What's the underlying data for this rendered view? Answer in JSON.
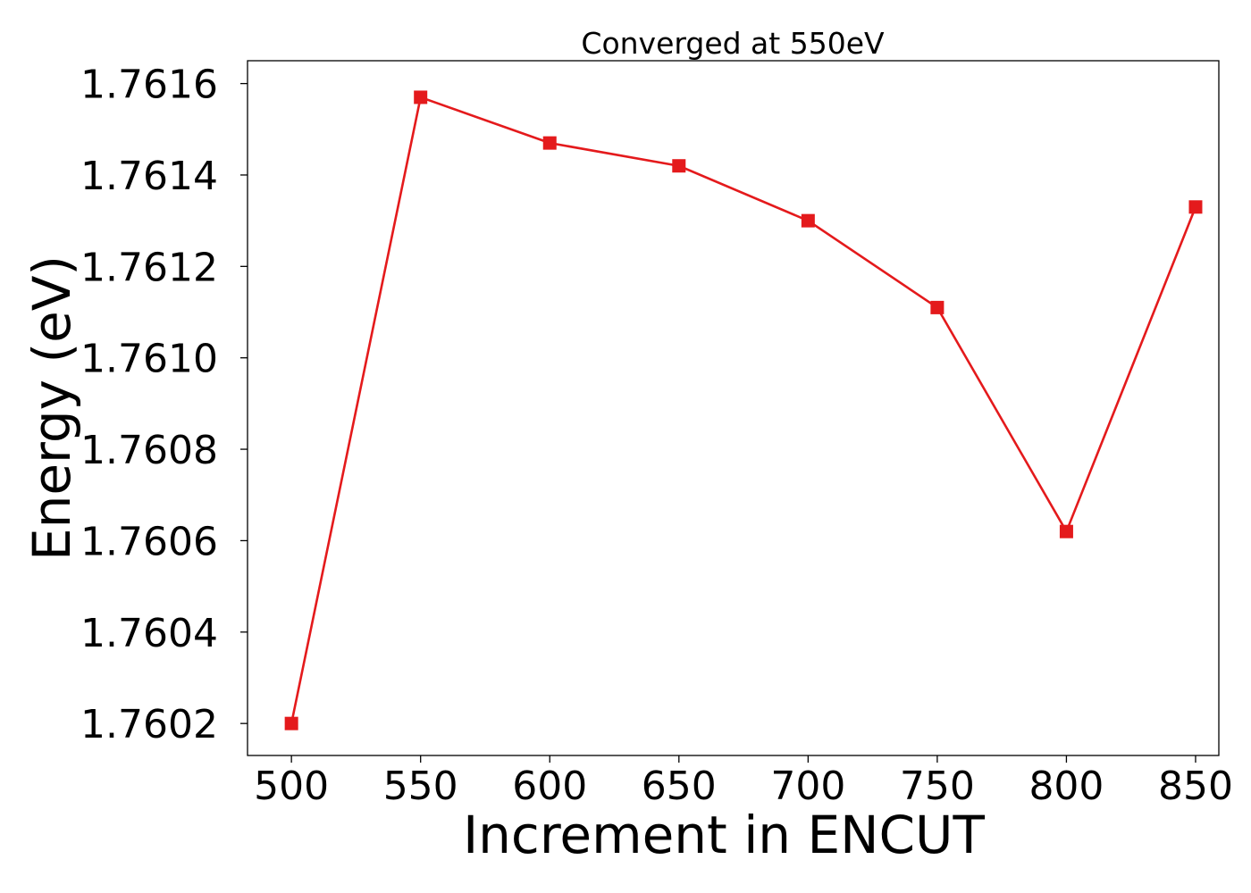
{
  "chart_data": {
    "type": "line",
    "title": "Converged at 550eV",
    "xlabel": "Increment in ENCUT",
    "ylabel": "Energy (eV)",
    "x": [
      500,
      550,
      600,
      650,
      700,
      750,
      800,
      850
    ],
    "series": [
      {
        "values": [
          1.7602,
          1.76157,
          1.76147,
          1.76142,
          1.7613,
          1.76111,
          1.76062,
          1.76133
        ],
        "color": "#e41a1c",
        "marker": "square"
      }
    ],
    "xlim": [
      483,
      859
    ],
    "ylim": [
      1.76013,
      1.76165
    ],
    "xticks": [
      500,
      550,
      600,
      650,
      700,
      750,
      800,
      850
    ],
    "xtick_labels": [
      "500",
      "550",
      "600",
      "650",
      "700",
      "750",
      "800",
      "850"
    ],
    "yticks": [
      1.7602,
      1.7604,
      1.7606,
      1.7608,
      1.761,
      1.7612,
      1.7614,
      1.7616
    ],
    "ytick_labels": [
      "1.7602",
      "1.7604",
      "1.7606",
      "1.7608",
      "1.7610",
      "1.7612",
      "1.7614",
      "1.7616"
    ],
    "grid": false,
    "legend": "none"
  }
}
